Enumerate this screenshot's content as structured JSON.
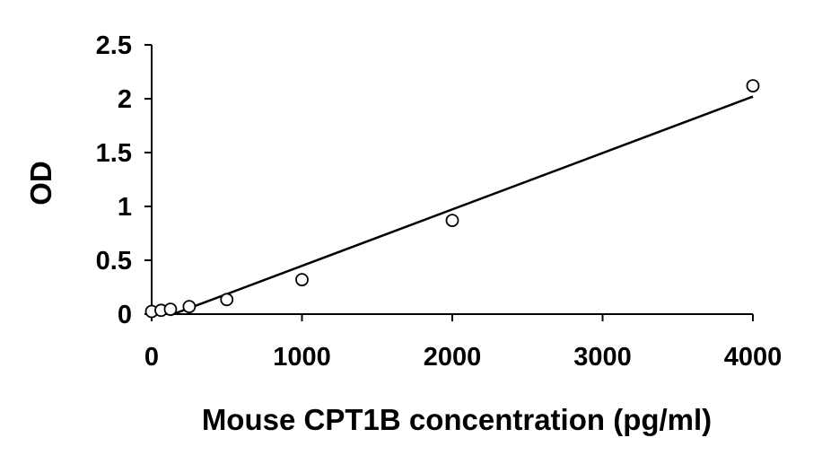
{
  "chart_data": {
    "type": "scatter",
    "title": "",
    "xlabel": "Mouse CPT1B concentration (pg/ml)",
    "ylabel": "OD",
    "xlim": [
      0,
      4000
    ],
    "ylim": [
      0,
      2.5
    ],
    "x_ticks": [
      0,
      1000,
      2000,
      3000,
      4000
    ],
    "x_tick_labels": [
      "0",
      "1000",
      "2000",
      "3000",
      "4000"
    ],
    "y_ticks": [
      0,
      0.5,
      1,
      1.5,
      2,
      2.5
    ],
    "y_tick_labels": [
      "0",
      "0.5",
      "1",
      "1.5",
      "2",
      "2.5"
    ],
    "grid": false,
    "legend": "none",
    "series": [
      {
        "marker": "open-circle",
        "x": [
          0,
          62.5,
          125,
          250,
          500,
          1000,
          2000,
          4000
        ],
        "y": [
          0.025,
          0.035,
          0.045,
          0.07,
          0.135,
          0.32,
          0.87,
          2.12
        ]
      }
    ],
    "trendline": {
      "type": "linear",
      "x": [
        125,
        4000
      ],
      "y": [
        -0.01,
        2.02
      ]
    },
    "colors": {
      "axis": "#000000",
      "marker_stroke": "#000000",
      "marker_fill": "#ffffff",
      "trendline": "#000000"
    }
  }
}
